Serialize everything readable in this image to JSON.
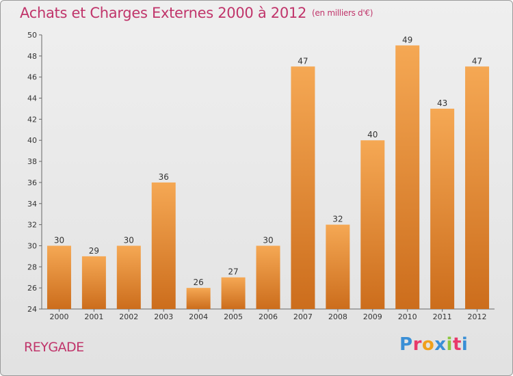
{
  "header": {
    "title": "Achats et Charges Externes 2000 à 2012",
    "unit": "(en milliers d'€)"
  },
  "footer": {
    "commune": "REYGADE",
    "logo": "Proxiti"
  },
  "colors": {
    "title": "#c0346a",
    "bar_top": "#f5a854",
    "bar_bottom": "#cc6d1c",
    "logo_letters": [
      "#3a8fd6",
      "#e83a6a",
      "#f0a01c",
      "#3a8fd6",
      "#8cc63f",
      "#e83a6a",
      "#3a8fd6"
    ]
  },
  "chart_data": {
    "type": "bar",
    "title": "Achats et Charges Externes 2000 à 2012",
    "subtitle": "(en milliers d'€)",
    "xlabel": "",
    "ylabel": "",
    "categories": [
      "2000",
      "2001",
      "2002",
      "2003",
      "2004",
      "2005",
      "2006",
      "2007",
      "2008",
      "2009",
      "2010",
      "2011",
      "2012"
    ],
    "values": [
      30,
      29,
      30,
      36,
      26,
      27,
      30,
      47,
      32,
      40,
      49,
      43,
      47
    ],
    "ylim": [
      24,
      50
    ],
    "yticks": [
      24,
      26,
      28,
      30,
      32,
      34,
      36,
      38,
      40,
      42,
      44,
      46,
      48,
      50
    ],
    "grid": false,
    "data_labels": true
  }
}
